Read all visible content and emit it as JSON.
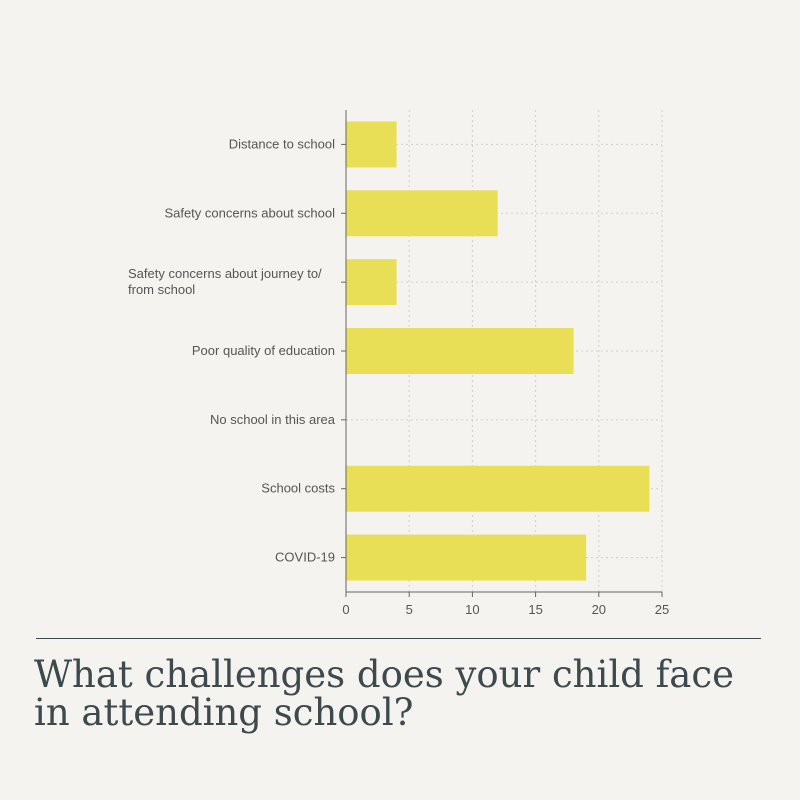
{
  "title": "What challenges does your child face in attending school?",
  "chart_data": {
    "type": "bar",
    "orientation": "horizontal",
    "categories": [
      "Distance to school",
      "Safety concerns about school",
      "Safety concerns about journey to/ from school",
      "Poor quality of education",
      "No school in this area",
      "School costs",
      "COVID-19"
    ],
    "category_lines": [
      [
        "Distance to school"
      ],
      [
        "Safety concerns about school"
      ],
      [
        "Safety concerns about journey to/",
        "from school"
      ],
      [
        "Poor quality of education"
      ],
      [
        "No school in this area"
      ],
      [
        "School costs"
      ],
      [
        "COVID-19"
      ]
    ],
    "values": [
      4,
      12,
      4,
      18,
      0,
      24,
      19
    ],
    "xlim": [
      0,
      25
    ],
    "xticks": [
      0,
      5,
      10,
      15,
      20,
      25
    ],
    "xlabel": "",
    "ylabel": "",
    "grid": "dotted",
    "colors": {
      "bar": "#e8df57",
      "grid": "#cfcfcf",
      "axis": "#666666",
      "text": "#555555",
      "title": "#3d4a4d"
    }
  }
}
